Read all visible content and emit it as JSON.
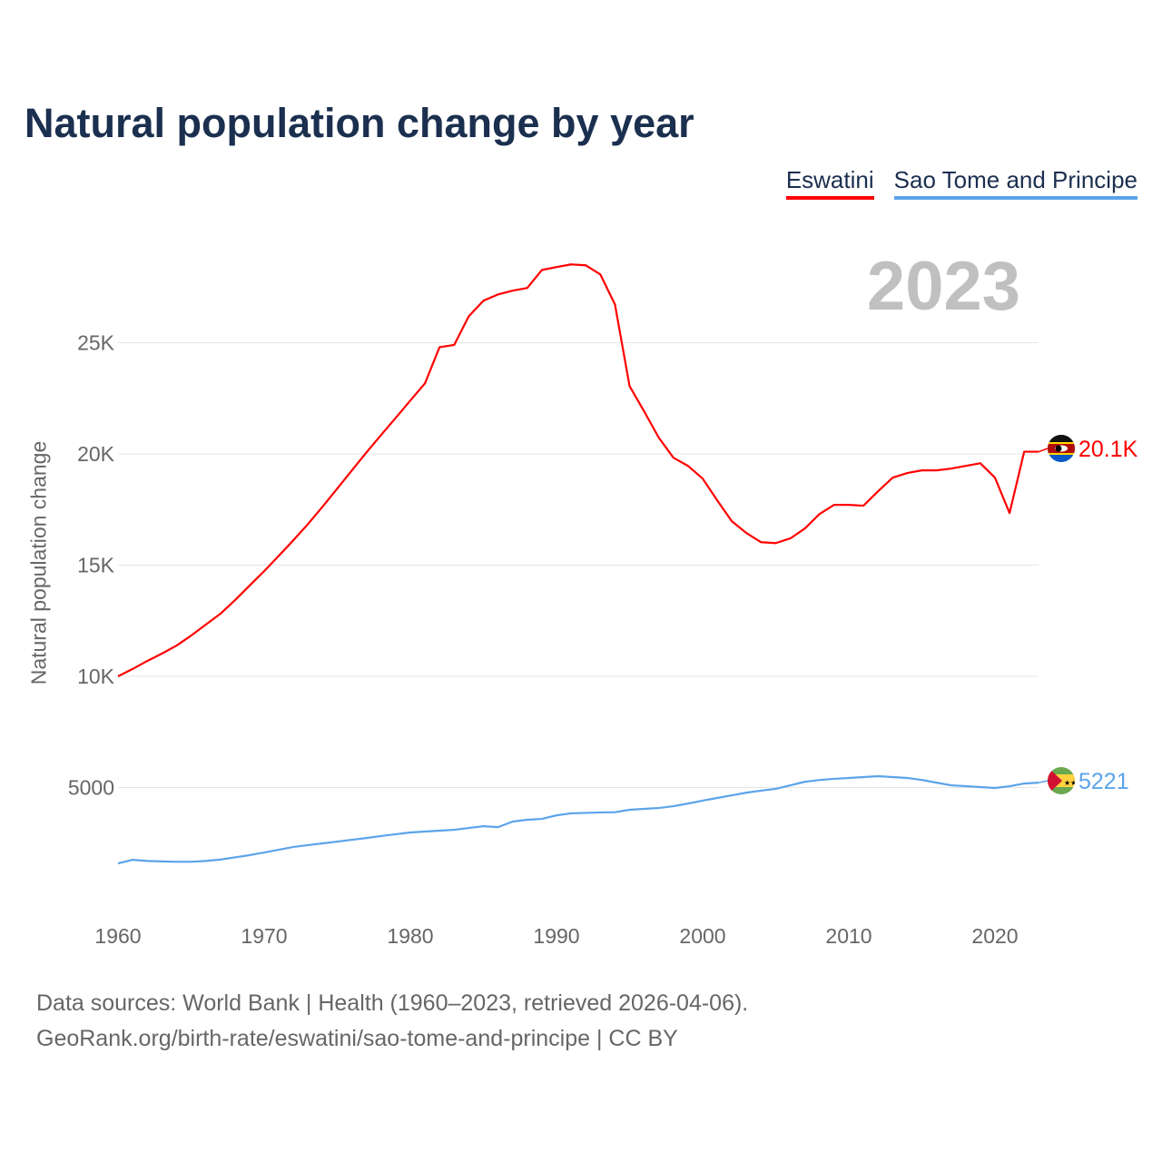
{
  "title": "Natural population change by year",
  "year_label": "2023",
  "chart_data": {
    "type": "line",
    "title": "Natural population change by year",
    "xlabel": "",
    "ylabel": "Natural population change",
    "xlim": [
      1960,
      2023
    ],
    "ylim": [
      0,
      30000
    ],
    "grid": true,
    "legend_placement": "top-right",
    "x_ticks": [
      1960,
      1970,
      1980,
      1990,
      2000,
      2010,
      2020
    ],
    "x_tick_labels": [
      "1960",
      "1970",
      "1980",
      "1990",
      "2000",
      "2010",
      "2020"
    ],
    "y_ticks": [
      5000,
      10000,
      15000,
      20000,
      25000
    ],
    "y_tick_labels": [
      "5000",
      "10K",
      "15K",
      "20K",
      "25K"
    ],
    "x": [
      1960,
      1961,
      1962,
      1963,
      1964,
      1965,
      1966,
      1967,
      1968,
      1969,
      1970,
      1971,
      1972,
      1973,
      1974,
      1975,
      1976,
      1977,
      1978,
      1979,
      1980,
      1981,
      1982,
      1983,
      1984,
      1985,
      1986,
      1987,
      1988,
      1989,
      1990,
      1991,
      1992,
      1993,
      1994,
      1995,
      1996,
      1997,
      1998,
      1999,
      2000,
      2001,
      2002,
      2003,
      2004,
      2005,
      2006,
      2007,
      2008,
      2009,
      2010,
      2011,
      2012,
      2013,
      2014,
      2015,
      2016,
      2017,
      2018,
      2019,
      2020,
      2021,
      2022,
      2023
    ],
    "series": [
      {
        "name": "Eswatini",
        "color": "#ff0000",
        "end_label": "20.1K",
        "flag": "eswatini-flag",
        "values": [
          10000,
          10330,
          10690,
          11020,
          11380,
          11830,
          12320,
          12810,
          13420,
          14080,
          14730,
          15420,
          16120,
          16850,
          17630,
          18440,
          19260,
          20070,
          20850,
          21620,
          22400,
          23170,
          24800,
          24900,
          26190,
          26890,
          27170,
          27340,
          27460,
          28270,
          28400,
          28520,
          28480,
          28070,
          26720,
          23050,
          21910,
          20730,
          19830,
          19460,
          18890,
          17910,
          16970,
          16440,
          16030,
          15990,
          16200,
          16650,
          17300,
          17710,
          17710,
          17670,
          18320,
          18930,
          19140,
          19260,
          19260,
          19340,
          19460,
          19580,
          18930,
          17340,
          20100,
          20100
        ]
      },
      {
        "name": "Sao Tome and Principe",
        "color": "#5ba4ea",
        "end_label": "5221",
        "flag": "sao-tome-flag",
        "values": [
          1590,
          1750,
          1700,
          1680,
          1660,
          1660,
          1700,
          1760,
          1860,
          1960,
          2080,
          2200,
          2330,
          2410,
          2490,
          2570,
          2650,
          2730,
          2820,
          2900,
          2980,
          3020,
          3060,
          3100,
          3180,
          3260,
          3220,
          3470,
          3550,
          3590,
          3750,
          3840,
          3860,
          3880,
          3890,
          4000,
          4040,
          4080,
          4160,
          4280,
          4410,
          4530,
          4650,
          4770,
          4860,
          4940,
          5100,
          5260,
          5340,
          5390,
          5430,
          5470,
          5510,
          5470,
          5430,
          5340,
          5220,
          5100,
          5060,
          5020,
          4980,
          5060,
          5180,
          5221
        ]
      }
    ]
  },
  "footer": {
    "line1": "Data sources: World Bank | Health (1960–2023, retrieved 2026-04-06).",
    "line2": "GeoRank.org/birth-rate/eswatini/sao-tome-and-principe | CC BY"
  }
}
